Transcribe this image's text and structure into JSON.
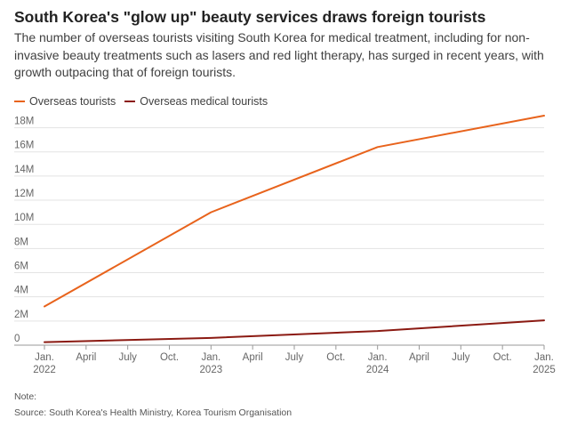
{
  "title": "South Korea's \"glow up\" beauty services draws foreign tourists",
  "subtitle": "The number of overseas tourists visiting South Korea for medical treatment, including for non-invasive beauty treatments such as lasers and red light therapy, has surged in recent years, with growth outpacing that of foreign tourists.",
  "note": "Note:",
  "source": "Source: South Korea's Health Ministry, Korea Tourism Organisation",
  "colors": {
    "overseas": "#e8631c",
    "medical": "#8b1a12",
    "grid": "#e3e3e3",
    "axis": "#999999"
  },
  "chart_data": {
    "type": "line",
    "title": "South Korea's \"glow up\" beauty services draws foreign tourists",
    "xlabel": "",
    "ylabel": "",
    "legend_position": "top-left",
    "grid": true,
    "x": [
      "2022-01",
      "2023-01",
      "2024-01",
      "2025-01"
    ],
    "ylim": [
      0,
      19000000
    ],
    "yticks": [
      0,
      2000000,
      4000000,
      6000000,
      8000000,
      10000000,
      12000000,
      14000000,
      16000000,
      18000000
    ],
    "ytick_labels": [
      "0",
      "2M",
      "4M",
      "6M",
      "8M",
      "10M",
      "12M",
      "14M",
      "16M",
      "18M"
    ],
    "xticks": [
      {
        "x": "2022-01",
        "line1": "Jan.",
        "line2": "2022"
      },
      {
        "x": "2022-04",
        "line1": "April",
        "line2": ""
      },
      {
        "x": "2022-07",
        "line1": "July",
        "line2": ""
      },
      {
        "x": "2022-10",
        "line1": "Oct.",
        "line2": ""
      },
      {
        "x": "2023-01",
        "line1": "Jan.",
        "line2": "2023"
      },
      {
        "x": "2023-04",
        "line1": "April",
        "line2": ""
      },
      {
        "x": "2023-07",
        "line1": "July",
        "line2": ""
      },
      {
        "x": "2023-10",
        "line1": "Oct.",
        "line2": ""
      },
      {
        "x": "2024-01",
        "line1": "Jan.",
        "line2": "2024"
      },
      {
        "x": "2024-04",
        "line1": "April",
        "line2": ""
      },
      {
        "x": "2024-07",
        "line1": "July",
        "line2": ""
      },
      {
        "x": "2024-10",
        "line1": "Oct.",
        "line2": ""
      },
      {
        "x": "2025-01",
        "line1": "Jan.",
        "line2": "2025"
      }
    ],
    "series": [
      {
        "name": "Overseas tourists",
        "color": "#e8631c",
        "values": [
          3200000,
          11000000,
          16400000,
          19000000
        ]
      },
      {
        "name": "Overseas medical tourists",
        "color": "#8b1a12",
        "values": [
          250000,
          600000,
          1170000,
          2050000
        ]
      }
    ]
  }
}
